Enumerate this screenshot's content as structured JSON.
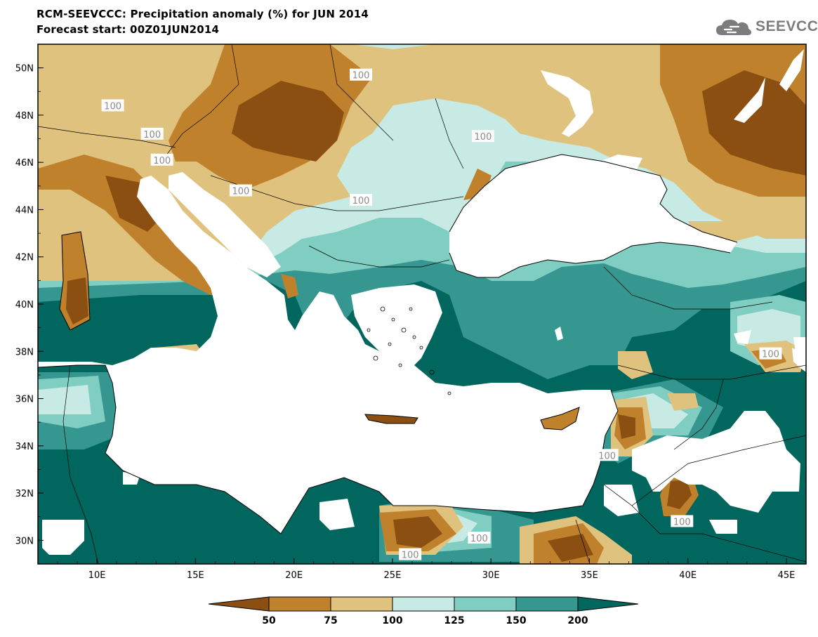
{
  "header": {
    "title_line1": "RCM-SEEVCCC: Precipitation anomaly (%) for JUN 2014",
    "title_line2": "Forecast start: 00Z01JUN2014"
  },
  "logo": {
    "text": "SEEVCCC",
    "icon": "cloud-icon"
  },
  "map": {
    "lon_range": [
      7,
      46
    ],
    "lat_range": [
      29,
      51
    ],
    "lon_ticks": [
      {
        "value": 10,
        "label": "10E"
      },
      {
        "value": 15,
        "label": "15E"
      },
      {
        "value": 20,
        "label": "20E"
      },
      {
        "value": 25,
        "label": "25E"
      },
      {
        "value": 30,
        "label": "30E"
      },
      {
        "value": 35,
        "label": "35E"
      },
      {
        "value": 40,
        "label": "40E"
      },
      {
        "value": 45,
        "label": "45E"
      }
    ],
    "lat_ticks": [
      {
        "value": 50,
        "label": "50N"
      },
      {
        "value": 48,
        "label": "48N"
      },
      {
        "value": 46,
        "label": "46N"
      },
      {
        "value": 44,
        "label": "44N"
      },
      {
        "value": 42,
        "label": "42N"
      },
      {
        "value": 40,
        "label": "40N"
      },
      {
        "value": 38,
        "label": "38N"
      },
      {
        "value": 36,
        "label": "36N"
      },
      {
        "value": 34,
        "label": "34N"
      },
      {
        "value": 32,
        "label": "32N"
      },
      {
        "value": 30,
        "label": "30N"
      }
    ],
    "contour_labels": [
      {
        "text": "100",
        "lon": 10.8,
        "lat": 48.4
      },
      {
        "text": "100",
        "lon": 12.8,
        "lat": 47.2
      },
      {
        "text": "100",
        "lon": 13.3,
        "lat": 46.1
      },
      {
        "text": "100",
        "lon": 17.3,
        "lat": 44.8
      },
      {
        "text": "100",
        "lon": 23.4,
        "lat": 49.7
      },
      {
        "text": "100",
        "lon": 23.4,
        "lat": 44.4
      },
      {
        "text": "100",
        "lon": 29.6,
        "lat": 47.1
      },
      {
        "text": "100",
        "lon": 44.2,
        "lat": 37.9
      },
      {
        "text": "100",
        "lon": 35.9,
        "lat": 33.6
      },
      {
        "text": "100",
        "lon": 39.7,
        "lat": 30.8
      },
      {
        "text": "100",
        "lon": 29.4,
        "lat": 30.1
      },
      {
        "text": "100",
        "lon": 25.9,
        "lat": 29.4
      }
    ]
  },
  "colorbar": {
    "tick_labels": [
      "50",
      "75",
      "100",
      "125",
      "150",
      "200"
    ],
    "colors": {
      "below_50": "#8b5011",
      "50_75": "#bf812c",
      "75_100": "#dfc27d",
      "100_125": "#c7eae5",
      "125_150": "#80cdc1",
      "150_200": "#35978f",
      "above_200": "#01665e"
    }
  }
}
